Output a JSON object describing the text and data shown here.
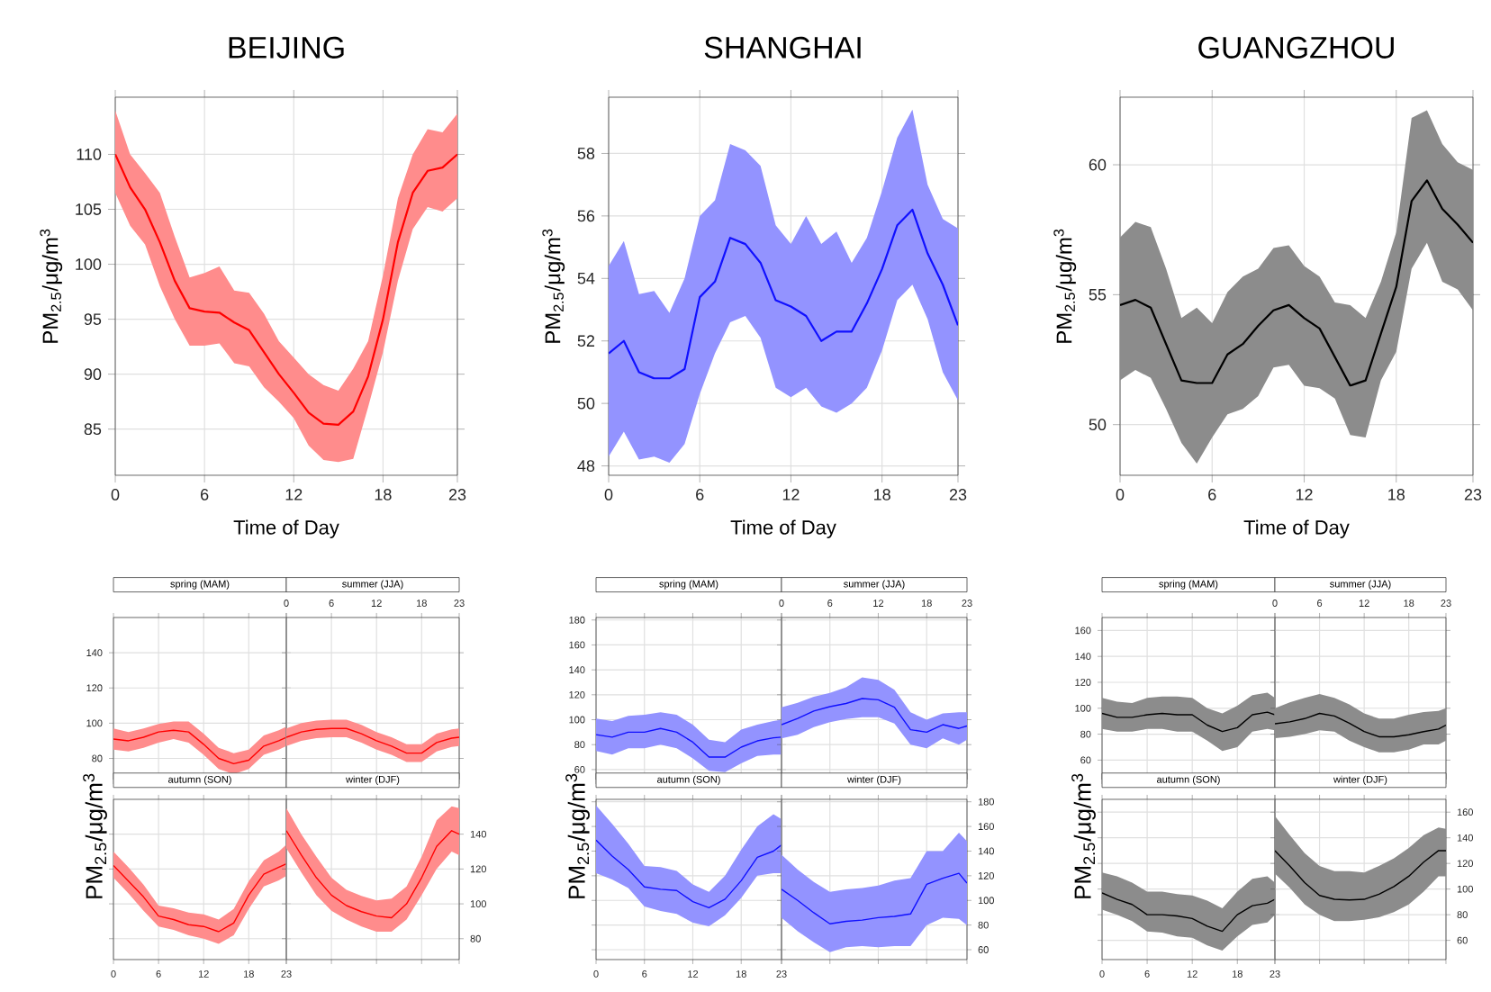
{
  "chart_data": [
    {
      "type": "line",
      "title": "BEIJING",
      "xlabel": "Time of Day",
      "ylabel": "PM$_{2.5}$/μg/m$^{3}$",
      "x": [
        0,
        1,
        2,
        3,
        4,
        5,
        6,
        7,
        8,
        9,
        10,
        11,
        12,
        13,
        14,
        15,
        16,
        17,
        18,
        19,
        20,
        21,
        22,
        23
      ],
      "xlim": [
        0,
        23
      ],
      "xticks": [
        0,
        6,
        12,
        18,
        23
      ],
      "ylim": [
        80.8,
        115.2
      ],
      "yticks": [
        85,
        90,
        95,
        100,
        105,
        110
      ],
      "grid": true,
      "series": [
        {
          "color": "#ff0000",
          "values": [
            110,
            107,
            105,
            102,
            98.5,
            96,
            95.7,
            95.6,
            94.7,
            94,
            92,
            90,
            88.3,
            86.5,
            85.5,
            85.4,
            86.6,
            89.8,
            95,
            102,
            106.5,
            108.5,
            108.8,
            110
          ],
          "upper": [
            114,
            110,
            108.3,
            106.5,
            102.5,
            98.8,
            99.2,
            99.8,
            97.6,
            97.4,
            95.5,
            93,
            91.5,
            90,
            89,
            88.5,
            90.5,
            93,
            99,
            106,
            110,
            112.3,
            112,
            113.7
          ],
          "lower": [
            106.5,
            103.5,
            101.8,
            98,
            95,
            92.6,
            92.6,
            92.8,
            91,
            90.7,
            88.8,
            87.5,
            86,
            83.5,
            82.2,
            82,
            82.3,
            87,
            92,
            98.5,
            103.2,
            105.2,
            104.8,
            106
          ]
        }
      ]
    },
    {
      "type": "line",
      "title": "SHANGHAI",
      "xlabel": "Time of Day",
      "ylabel": "PM$_{2.5}$/μg/m$^{3}$",
      "x": [
        0,
        1,
        2,
        3,
        4,
        5,
        6,
        7,
        8,
        9,
        10,
        11,
        12,
        13,
        14,
        15,
        16,
        17,
        18,
        19,
        20,
        21,
        22,
        23
      ],
      "xlim": [
        0,
        23
      ],
      "xticks": [
        0,
        6,
        12,
        18,
        23
      ],
      "ylim": [
        47.7,
        59.8
      ],
      "yticks": [
        48,
        50,
        52,
        54,
        56,
        58
      ],
      "grid": true,
      "series": [
        {
          "color": "#1010ff",
          "values": [
            51.6,
            52,
            51,
            50.8,
            50.8,
            51.1,
            53.4,
            53.9,
            55.3,
            55.1,
            54.5,
            53.3,
            53.1,
            52.8,
            52,
            52.3,
            52.3,
            53.2,
            54.3,
            55.7,
            56.2,
            54.8,
            53.8,
            52.5
          ],
          "upper": [
            54.4,
            55.2,
            53.5,
            53.6,
            52.9,
            54,
            56,
            56.5,
            58.3,
            58.1,
            57.6,
            55.7,
            55.1,
            56,
            55.1,
            55.5,
            54.5,
            55.3,
            56.8,
            58.5,
            59.4,
            57,
            55.9,
            55.6
          ],
          "lower": [
            48.3,
            49.1,
            48.2,
            48.3,
            48.1,
            48.7,
            50.3,
            51.6,
            52.6,
            52.8,
            52.1,
            50.5,
            50.2,
            50.5,
            49.9,
            49.7,
            50,
            50.5,
            51.7,
            53.3,
            53.8,
            52.7,
            51,
            50.1
          ]
        }
      ]
    },
    {
      "type": "line",
      "title": "GUANGZHOU",
      "xlabel": "Time of Day",
      "ylabel": "PM$_{2.5}$/μg/m$^{3}$",
      "x": [
        0,
        1,
        2,
        3,
        4,
        5,
        6,
        7,
        8,
        9,
        10,
        11,
        12,
        13,
        14,
        15,
        16,
        17,
        18,
        19,
        20,
        21,
        22,
        23
      ],
      "xlim": [
        0,
        23
      ],
      "xticks": [
        0,
        6,
        12,
        18,
        23
      ],
      "ylim": [
        48.05,
        62.6
      ],
      "yticks": [
        50,
        55,
        60
      ],
      "grid": true,
      "series": [
        {
          "color": "#000000",
          "values": [
            54.6,
            54.8,
            54.5,
            53.1,
            51.7,
            51.6,
            51.6,
            52.7,
            53.1,
            53.8,
            54.4,
            54.6,
            54.1,
            53.7,
            52.6,
            51.5,
            51.7,
            53.5,
            55.3,
            58.6,
            59.4,
            58.3,
            57.7,
            57
          ],
          "upper": [
            57.2,
            57.8,
            57.6,
            56,
            54.1,
            54.5,
            53.9,
            55.1,
            55.7,
            56,
            56.8,
            56.9,
            56.1,
            55.7,
            54.7,
            54.6,
            54.1,
            55.5,
            57.4,
            61.8,
            62.1,
            60.8,
            60.1,
            59.8
          ],
          "lower": [
            51.7,
            52.1,
            51.8,
            50.6,
            49.3,
            48.5,
            49.5,
            50.4,
            50.6,
            51.1,
            52.2,
            52.3,
            51.5,
            51.4,
            51,
            49.6,
            49.5,
            51.7,
            52.8,
            56,
            57,
            55.5,
            55.2,
            54.4
          ]
        }
      ]
    },
    {
      "type": "line",
      "title": "spring (MAM)",
      "ylabel": "PM$_{2.5}$/μg/m$^{3}$",
      "x": [
        0,
        2,
        4,
        6,
        8,
        10,
        12,
        14,
        16,
        18,
        20,
        22,
        23
      ],
      "xlim": [
        0,
        23
      ],
      "xticks": [
        0,
        6,
        12,
        18,
        23
      ],
      "ylim": [
        68,
        160
      ],
      "yticks": [
        80,
        100,
        120,
        140
      ],
      "grid": true,
      "tick_labels": "y",
      "series": [
        {
          "color": "#ff0000",
          "values": [
            91,
            90,
            92,
            95,
            96,
            95,
            88,
            80,
            77,
            79,
            87,
            90,
            92
          ],
          "upper": [
            97,
            95,
            97,
            99.5,
            101,
            101,
            94,
            86,
            83,
            85,
            93,
            96,
            98
          ],
          "lower": [
            85,
            84,
            86,
            89,
            91,
            89,
            82,
            74,
            71,
            74,
            82,
            85,
            87
          ]
        }
      ]
    },
    {
      "type": "line",
      "title": "summer (JJA)",
      "x": [
        0,
        2,
        4,
        6,
        8,
        10,
        12,
        14,
        16,
        18,
        20,
        22,
        23
      ],
      "xlim": [
        0,
        23
      ],
      "xticks": [
        0,
        6,
        12,
        18,
        23
      ],
      "ylim": [
        68,
        160
      ],
      "yticks": [
        80,
        100,
        120,
        140
      ],
      "grid": true,
      "tick_labels": "x",
      "series": [
        {
          "color": "#ff0000",
          "values": [
            92,
            95,
            96.5,
            97,
            97,
            94,
            90,
            87,
            83,
            83,
            89,
            91.5,
            92
          ],
          "upper": [
            97,
            100,
            101.5,
            102,
            102,
            99,
            95,
            92,
            88,
            88,
            94,
            96.5,
            97
          ],
          "lower": [
            87,
            90,
            91.5,
            92,
            92,
            89,
            85,
            82,
            78,
            78,
            84,
            86.5,
            87
          ]
        }
      ]
    },
    {
      "type": "line",
      "title": "autumn (SON)",
      "x": [
        0,
        2,
        4,
        6,
        8,
        10,
        12,
        14,
        16,
        18,
        20,
        22,
        23
      ],
      "xlim": [
        0,
        23
      ],
      "xticks": [
        0,
        6,
        12,
        18,
        23
      ],
      "ylim": [
        68,
        160
      ],
      "yticks": [
        80,
        100,
        120,
        140
      ],
      "grid": true,
      "tick_labels": "x",
      "series": [
        {
          "color": "#ff0000",
          "values": [
            122,
            113,
            104,
            93,
            91,
            88,
            87,
            84,
            89,
            105,
            117,
            121,
            123
          ],
          "upper": [
            130,
            121,
            111,
            99,
            97.5,
            95,
            94,
            91,
            97,
            113,
            125,
            130,
            134
          ],
          "lower": [
            115,
            106,
            96,
            87,
            85,
            82,
            80,
            77,
            82,
            97,
            110,
            113.5,
            116
          ]
        }
      ]
    },
    {
      "type": "line",
      "title": "winter (DJF)",
      "x": [
        0,
        2,
        4,
        6,
        8,
        10,
        12,
        14,
        16,
        18,
        20,
        22,
        23
      ],
      "xlim": [
        0,
        23
      ],
      "xticks": [
        0,
        6,
        12,
        18,
        23
      ],
      "y2lim": [
        68,
        160
      ],
      "y2ticks": [
        80,
        100,
        120,
        140
      ],
      "grid": true,
      "tick_labels": "y",
      "series": [
        {
          "color": "#ff0000",
          "axis": "y2",
          "values": [
            142,
            128,
            115,
            105,
            99,
            95.5,
            93,
            92,
            100,
            115,
            133,
            142,
            140
          ],
          "upper": [
            155,
            140,
            127,
            115,
            108,
            104.5,
            102,
            103,
            110,
            127,
            148,
            156,
            155
          ],
          "lower": [
            132,
            118,
            105,
            96,
            91,
            87,
            84,
            84,
            91,
            105,
            120,
            130,
            128
          ]
        }
      ]
    },
    {
      "type": "line",
      "title": "spring (MAM)",
      "ylabel": "PM$_{2.5}$/μg/m$^{3}$",
      "x": [
        0,
        2,
        4,
        6,
        8,
        10,
        12,
        14,
        16,
        18,
        20,
        22,
        23
      ],
      "xlim": [
        0,
        23
      ],
      "xticks": [
        0,
        6,
        12,
        18,
        23
      ],
      "ylim": [
        52,
        182
      ],
      "yticks": [
        60,
        80,
        100,
        120,
        140,
        160,
        180
      ],
      "grid": true,
      "tick_labels": "y",
      "series": [
        {
          "color": "#1010ff",
          "values": [
            88,
            86,
            90,
            90,
            93,
            90,
            82,
            70,
            70,
            78,
            83,
            85.5,
            86
          ],
          "upper": [
            101,
            99,
            103,
            104,
            106,
            104,
            96,
            84,
            82,
            92,
            96,
            99,
            100
          ],
          "lower": [
            75,
            72,
            77,
            77,
            80,
            77,
            69,
            59,
            58,
            65,
            71,
            72,
            72
          ]
        }
      ]
    },
    {
      "type": "line",
      "title": "summer (JJA)",
      "x": [
        0,
        2,
        4,
        6,
        8,
        10,
        12,
        14,
        16,
        18,
        20,
        22,
        23
      ],
      "xlim": [
        0,
        23
      ],
      "xticks": [
        0,
        6,
        12,
        18,
        23
      ],
      "ylim": [
        52,
        182
      ],
      "yticks": [
        60,
        80,
        100,
        120,
        140,
        160,
        180
      ],
      "grid": true,
      "tick_labels": "x",
      "series": [
        {
          "color": "#1010ff",
          "values": [
            96,
            101,
            107,
            110.5,
            113,
            117,
            116,
            110,
            92,
            90,
            96,
            93,
            95
          ],
          "upper": [
            110,
            113.5,
            118.5,
            121.5,
            126,
            134,
            132,
            124,
            106,
            100,
            105,
            106,
            106
          ],
          "lower": [
            85,
            88,
            94,
            98,
            100.5,
            102,
            102,
            97,
            80,
            77,
            85,
            80,
            84
          ]
        }
      ]
    },
    {
      "type": "line",
      "title": "autumn (SON)",
      "x": [
        0,
        2,
        4,
        6,
        8,
        10,
        12,
        14,
        16,
        18,
        20,
        22,
        23
      ],
      "xlim": [
        0,
        23
      ],
      "xticks": [
        0,
        6,
        12,
        18,
        23
      ],
      "ylim": [
        52,
        182
      ],
      "yticks": [
        60,
        80,
        100,
        120,
        140,
        160,
        180
      ],
      "grid": true,
      "tick_labels": "x",
      "series": [
        {
          "color": "#1010ff",
          "values": [
            149,
            136,
            125,
            111,
            109,
            108,
            99,
            94,
            101,
            116,
            135,
            140,
            145
          ],
          "upper": [
            177,
            162,
            146,
            128,
            127,
            124,
            113,
            107,
            120,
            141,
            160,
            170,
            166
          ],
          "lower": [
            122,
            117,
            110,
            95,
            91.5,
            89,
            82,
            79,
            88,
            102,
            120,
            122,
            122
          ]
        }
      ]
    },
    {
      "type": "line",
      "title": "winter (DJF)",
      "x": [
        0,
        2,
        4,
        6,
        8,
        10,
        12,
        14,
        16,
        18,
        20,
        22,
        23
      ],
      "xlim": [
        0,
        23
      ],
      "xticks": [
        0,
        6,
        12,
        18,
        23
      ],
      "y2lim": [
        52,
        182
      ],
      "y2ticks": [
        60,
        80,
        100,
        120,
        140,
        160,
        180
      ],
      "grid": true,
      "tick_labels": "y",
      "series": [
        {
          "color": "#1010ff",
          "axis": "y2",
          "values": [
            109,
            100,
            90,
            81,
            83,
            84,
            86,
            87,
            89,
            113,
            118,
            122,
            114
          ],
          "upper": [
            137,
            125,
            115,
            107,
            109,
            110,
            112,
            116,
            118,
            140,
            140,
            155,
            148
          ],
          "lower": [
            86,
            75,
            66,
            58,
            62,
            63,
            62,
            63,
            63,
            80,
            86,
            85,
            80
          ]
        }
      ]
    },
    {
      "type": "line",
      "title": "spring (MAM)",
      "ylabel": "PM$_{2.5}$/μg/m$^{3}$",
      "x": [
        0,
        2,
        4,
        6,
        8,
        10,
        12,
        14,
        16,
        18,
        20,
        22,
        23
      ],
      "xlim": [
        0,
        23
      ],
      "xticks": [
        0,
        6,
        12,
        18,
        23
      ],
      "ylim": [
        45,
        170
      ],
      "yticks": [
        60,
        80,
        100,
        120,
        140,
        160
      ],
      "grid": true,
      "tick_labels": "y",
      "series": [
        {
          "color": "#000000",
          "values": [
            96,
            93,
            93,
            95,
            96,
            95,
            95,
            87,
            82,
            85,
            95,
            97,
            95
          ],
          "upper": [
            108,
            105,
            104,
            108,
            109,
            109,
            108,
            100,
            96,
            102,
            110,
            112,
            108
          ],
          "lower": [
            84,
            82,
            82,
            84,
            84,
            82,
            82,
            75,
            67,
            70,
            82,
            84,
            83
          ]
        }
      ]
    },
    {
      "type": "line",
      "title": "summer (JJA)",
      "x": [
        0,
        2,
        4,
        6,
        8,
        10,
        12,
        14,
        16,
        18,
        20,
        22,
        23
      ],
      "xlim": [
        0,
        23
      ],
      "xticks": [
        0,
        6,
        12,
        18,
        23
      ],
      "ylim": [
        45,
        170
      ],
      "yticks": [
        60,
        80,
        100,
        120,
        140,
        160
      ],
      "grid": true,
      "tick_labels": "x",
      "series": [
        {
          "color": "#000000",
          "values": [
            88,
            89.5,
            92,
            96,
            94,
            88.5,
            82,
            78,
            78,
            79.5,
            82,
            84,
            87
          ],
          "upper": [
            100,
            104.5,
            108,
            111,
            108,
            103,
            96,
            92,
            92,
            95,
            97,
            98,
            100
          ],
          "lower": [
            77,
            78,
            80,
            83,
            82,
            75,
            70,
            66,
            66,
            68,
            72,
            72,
            75
          ]
        }
      ]
    },
    {
      "type": "line",
      "title": "autumn (SON)",
      "x": [
        0,
        2,
        4,
        6,
        8,
        10,
        12,
        14,
        16,
        18,
        20,
        22,
        23
      ],
      "xlim": [
        0,
        23
      ],
      "xticks": [
        0,
        6,
        12,
        18,
        23
      ],
      "ylim": [
        45,
        170
      ],
      "yticks": [
        60,
        80,
        100,
        120,
        140,
        160
      ],
      "grid": true,
      "tick_labels": "x",
      "series": [
        {
          "color": "#000000",
          "values": [
            97,
            92,
            88,
            80,
            80,
            79,
            77,
            71,
            67,
            80,
            87,
            89,
            92
          ],
          "upper": [
            113,
            110,
            105,
            98,
            98,
            96,
            95,
            91,
            85,
            98,
            108,
            110,
            105
          ],
          "lower": [
            84,
            80,
            75,
            67,
            66,
            63,
            62,
            56,
            52,
            63,
            72,
            74,
            80
          ]
        }
      ]
    },
    {
      "type": "line",
      "title": "winter (DJF)",
      "x": [
        0,
        2,
        4,
        6,
        8,
        10,
        12,
        14,
        16,
        18,
        20,
        22,
        23
      ],
      "xlim": [
        0,
        23
      ],
      "xticks": [
        0,
        6,
        12,
        18,
        23
      ],
      "y2lim": [
        45,
        170
      ],
      "y2ticks": [
        60,
        80,
        100,
        120,
        140,
        160
      ],
      "grid": true,
      "tick_labels": "y",
      "series": [
        {
          "color": "#000000",
          "axis": "y2",
          "values": [
            130,
            118,
            105,
            95,
            92,
            91.5,
            92,
            96,
            102,
            110,
            121,
            130,
            130
          ],
          "upper": [
            157,
            142,
            128,
            118,
            114,
            114,
            113,
            118,
            124,
            132,
            142,
            148,
            147
          ],
          "lower": [
            112,
            101,
            88,
            80,
            75,
            75,
            76,
            78,
            82,
            88,
            98,
            110,
            110
          ]
        }
      ]
    }
  ]
}
